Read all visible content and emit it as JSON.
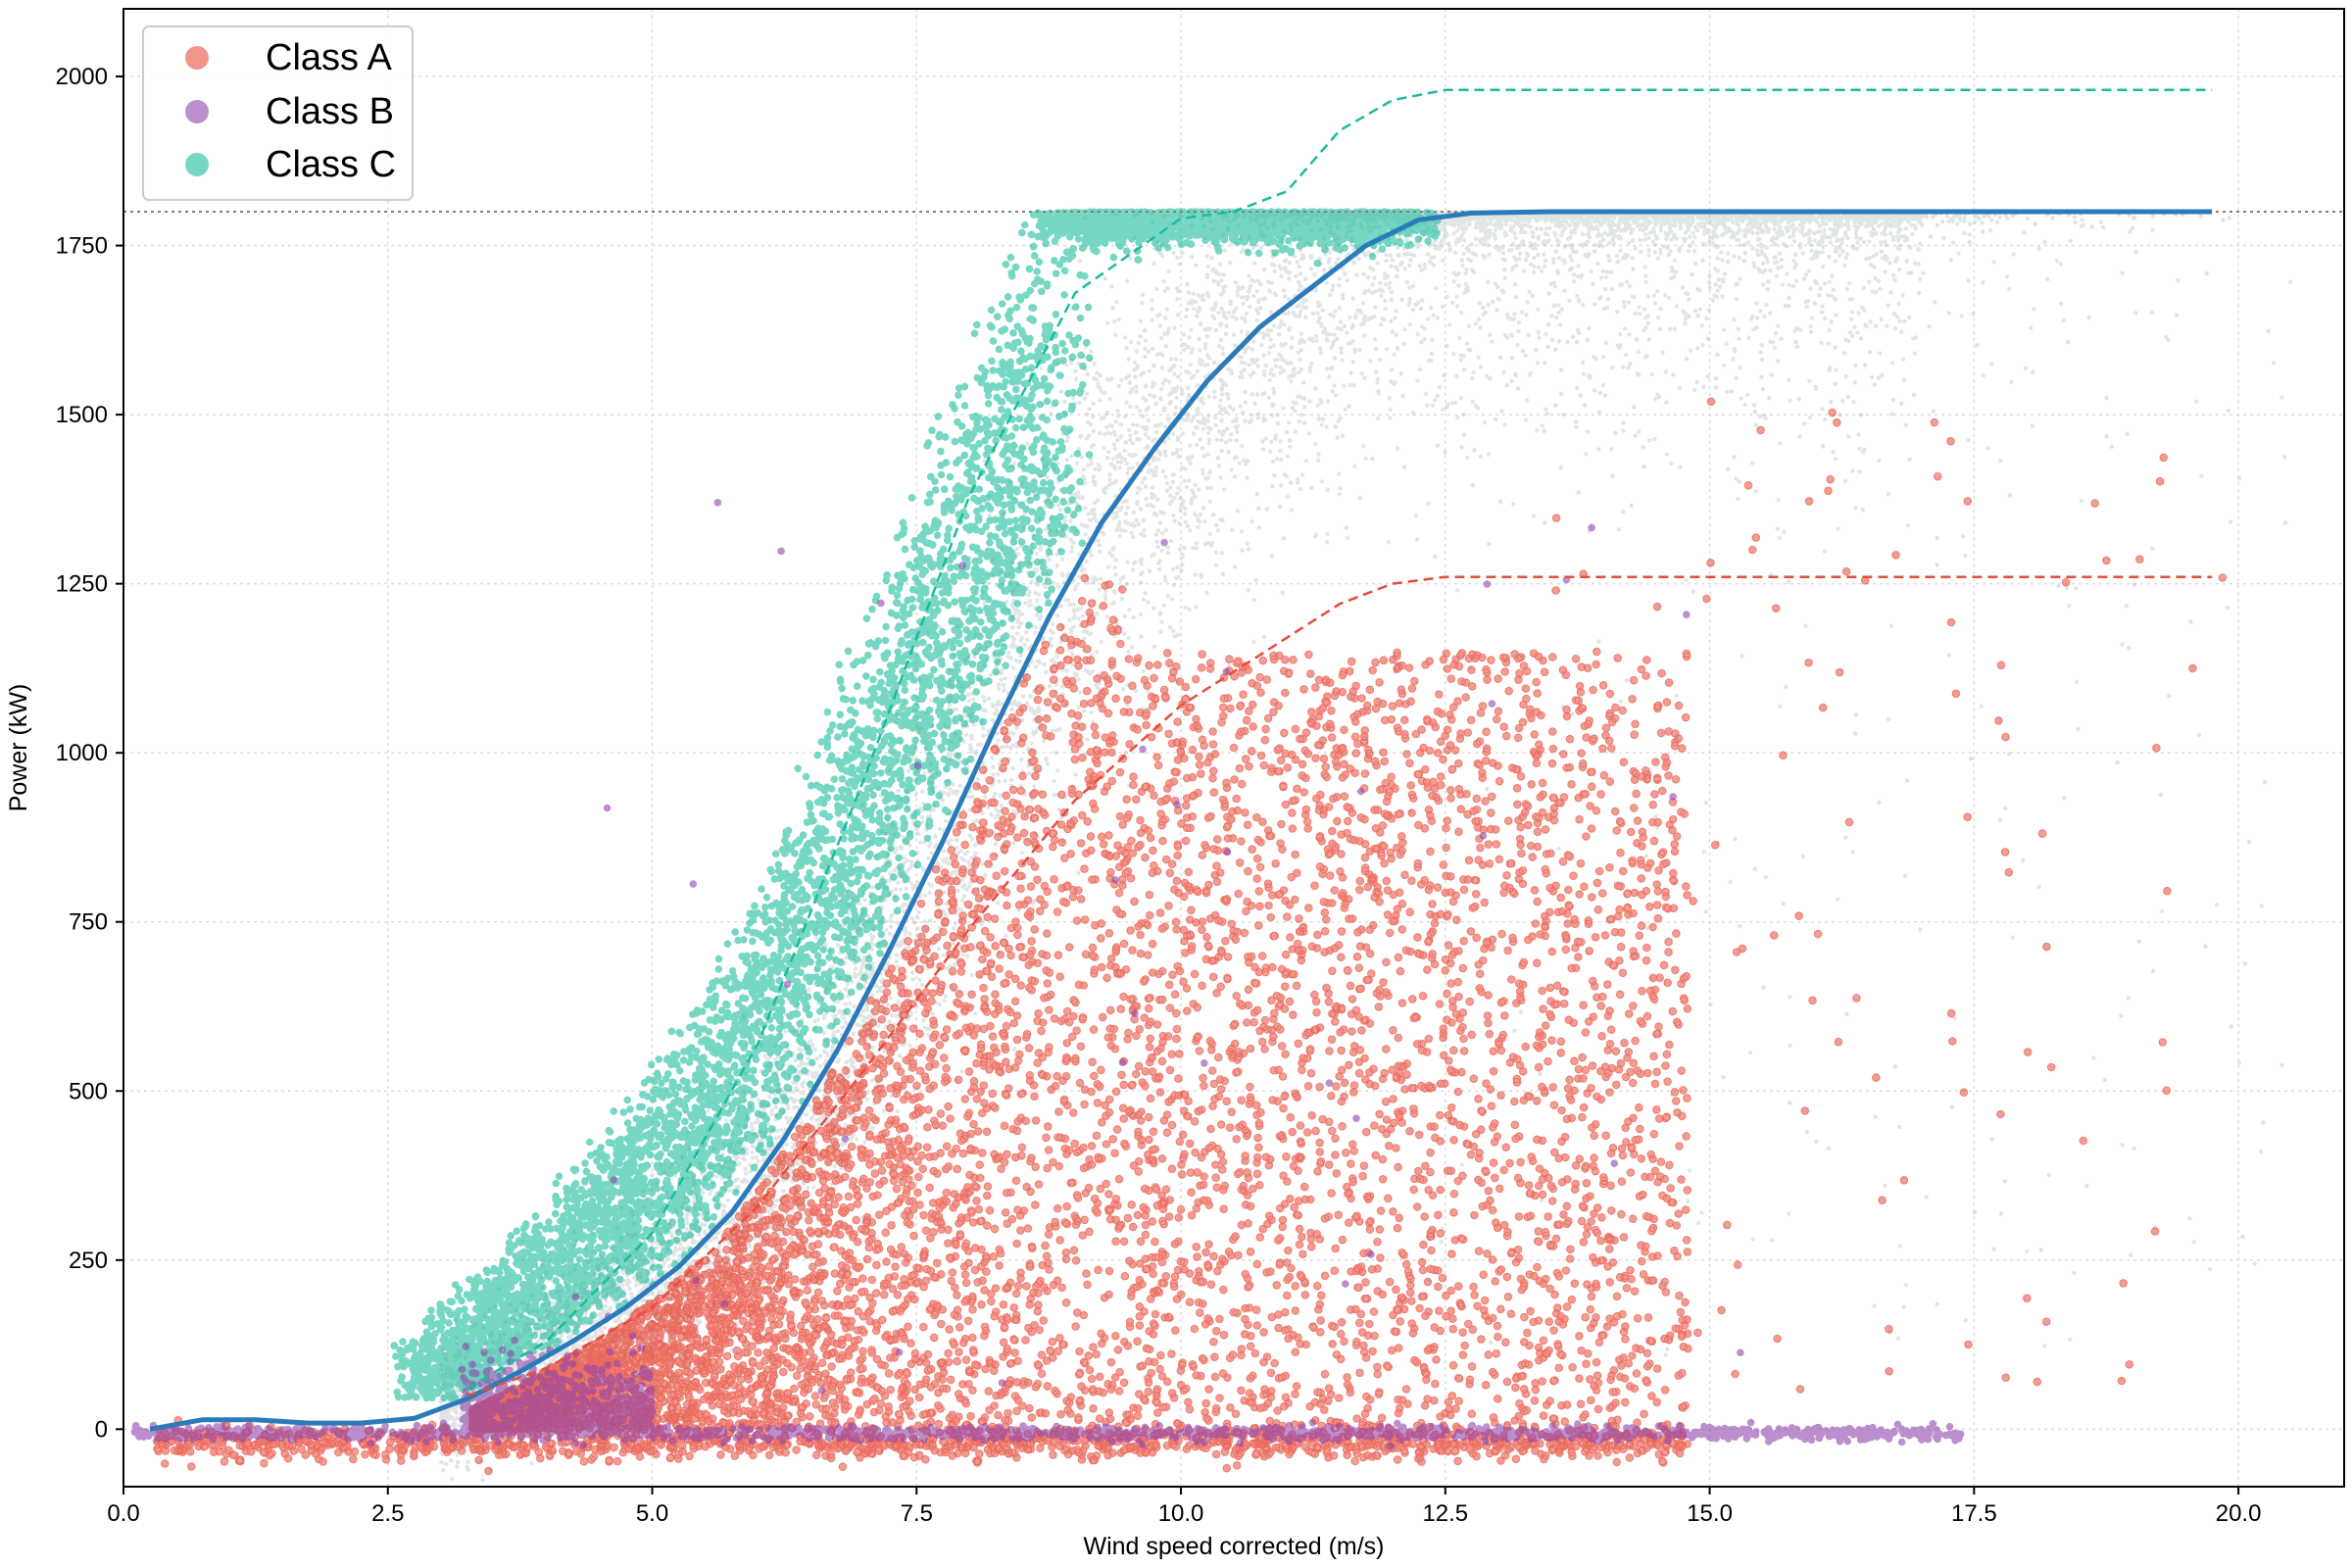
{
  "chart_data": {
    "type": "scatter",
    "title": "",
    "xlabel": "Wind speed corrected (m/s)",
    "ylabel": "Power (kW)",
    "xlim": [
      0.0,
      21.0
    ],
    "ylim": [
      -85,
      2100
    ],
    "xticks": [
      0.0,
      2.5,
      5.0,
      7.5,
      10.0,
      12.5,
      15.0,
      17.5,
      20.0
    ],
    "xtick_labels": [
      "0.0",
      "2.5",
      "5.0",
      "7.5",
      "10.0",
      "12.5",
      "15.0",
      "17.5",
      "20.0"
    ],
    "yticks": [
      0,
      250,
      500,
      750,
      1000,
      1250,
      1500,
      1750,
      2000
    ],
    "ytick_labels": [
      "0",
      "250",
      "500",
      "750",
      "1000",
      "1250",
      "1500",
      "1750",
      "2000"
    ],
    "grid": true,
    "legend_position": "top-left",
    "rated_power_line": 1800,
    "colors": {
      "class_a": "#e74c3c",
      "class_b": "#8e44ad",
      "class_c": "#1abc9c",
      "unlabeled": "#aab4b6",
      "reference_curve": "#2b7bba"
    },
    "series": [
      {
        "name": "Class A",
        "kind": "scatter",
        "description_points": [
          [
            4.0,
            80
          ],
          [
            5.5,
            200
          ],
          [
            6.5,
            400
          ],
          [
            7.5,
            600
          ],
          [
            8.5,
            800
          ],
          [
            9.2,
            1000
          ],
          [
            10.0,
            800
          ],
          [
            11.0,
            600
          ],
          [
            12.0,
            1000
          ],
          [
            13.0,
            800
          ],
          [
            14.0,
            500
          ],
          [
            15.0,
            350
          ],
          [
            17.0,
            700
          ],
          [
            19.5,
            350
          ],
          [
            10.0,
            0
          ],
          [
            12.5,
            0
          ],
          [
            14.5,
            0
          ]
        ]
      },
      {
        "name": "Class B",
        "kind": "scatter",
        "description_points": [
          [
            3.8,
            50
          ],
          [
            4.1,
            100
          ],
          [
            4.5,
            40
          ],
          [
            5.0,
            0
          ],
          [
            8.0,
            0
          ],
          [
            11.0,
            0
          ],
          [
            14.0,
            0
          ],
          [
            16.1,
            950
          ],
          [
            13.1,
            1320
          ],
          [
            10.5,
            1320
          ],
          [
            9.8,
            1420
          ]
        ]
      },
      {
        "name": "Class C",
        "kind": "scatter",
        "description_points": [
          [
            3.5,
            60
          ],
          [
            5.0,
            300
          ],
          [
            6.0,
            600
          ],
          [
            7.0,
            1000
          ],
          [
            8.0,
            1400
          ],
          [
            9.0,
            1700
          ],
          [
            9.5,
            1800
          ],
          [
            11.0,
            1800
          ],
          [
            12.5,
            1800
          ]
        ]
      },
      {
        "name": "",
        "kind": "line",
        "style": "solid",
        "x": [
          0.25,
          0.75,
          1.25,
          1.75,
          2.25,
          2.75,
          3.25,
          3.75,
          4.25,
          4.75,
          5.25,
          5.75,
          6.25,
          6.75,
          7.25,
          7.75,
          8.25,
          8.75,
          9.25,
          9.75,
          10.25,
          10.75,
          11.25,
          11.75,
          12.25,
          12.75,
          13.5,
          15.0,
          17.0,
          19.75
        ],
        "y": [
          0,
          14,
          14,
          9,
          9,
          16,
          45,
          85,
          130,
          180,
          240,
          320,
          430,
          560,
          710,
          870,
          1040,
          1200,
          1340,
          1450,
          1550,
          1630,
          1690,
          1750,
          1788,
          1798,
          1800,
          1800,
          1800,
          1800
        ]
      },
      {
        "name": "",
        "kind": "line",
        "style": "dashed",
        "color": "#1abc9c",
        "x": [
          3.25,
          4.0,
          5.0,
          6.0,
          7.0,
          8.0,
          9.0,
          10.0,
          10.5,
          11.0,
          11.5,
          12.0,
          12.5,
          12.75,
          19.75
        ],
        "y": [
          60,
          130,
          290,
          570,
          960,
          1380,
          1680,
          1790,
          1800,
          1830,
          1920,
          1965,
          1980,
          1980,
          1980
        ]
      },
      {
        "name": "",
        "kind": "line",
        "style": "dashed",
        "color": "#e74c3c",
        "x": [
          3.25,
          4.0,
          5.0,
          6.0,
          7.0,
          8.0,
          9.0,
          10.0,
          11.0,
          11.5,
          12.0,
          12.5,
          12.75,
          19.75
        ],
        "y": [
          50,
          90,
          180,
          330,
          530,
          740,
          930,
          1070,
          1170,
          1220,
          1250,
          1260,
          1260,
          1260
        ]
      }
    ]
  }
}
